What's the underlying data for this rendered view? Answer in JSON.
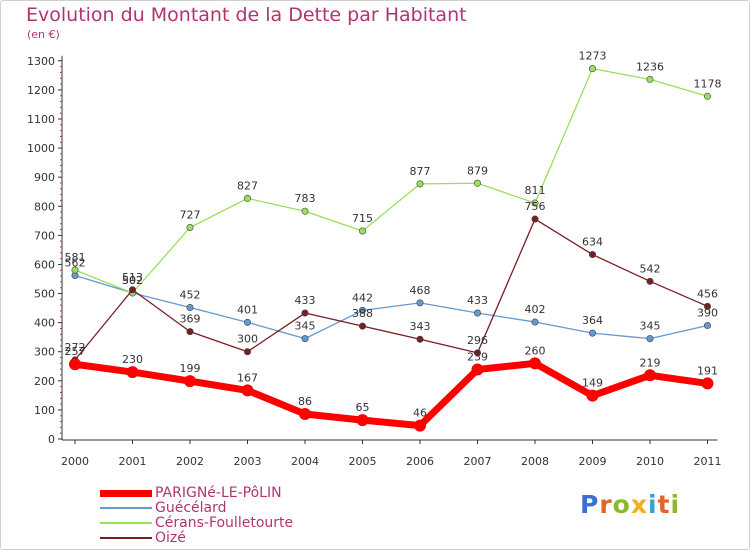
{
  "title": "Evolution du Montant de la Dette par Habitant",
  "subtitle": "(en €)",
  "logo": {
    "text": "Proxiti",
    "colors": [
      "#3a6fd1",
      "#e0662a",
      "#8ab832",
      "#f0b020",
      "#3a9fd1",
      "#e0662a",
      "#8ab832"
    ]
  },
  "chart_data": {
    "type": "line",
    "title": "Evolution du Montant de la Dette par Habitant",
    "ylabel": "(en €)",
    "x": [
      "2000",
      "2001",
      "2002",
      "2003",
      "2004",
      "2005",
      "2006",
      "2007",
      "2008",
      "2009",
      "2010",
      "2011"
    ],
    "ylim": [
      0,
      1300
    ],
    "yticks": [
      0,
      100,
      200,
      300,
      400,
      500,
      600,
      700,
      800,
      900,
      1000,
      1100,
      1200,
      1300
    ],
    "grid": false,
    "legend_position": "bottom-left",
    "series": [
      {
        "name": "PARIGNé-LE-PôLIN",
        "color": "#ff0000",
        "line_width": 7,
        "values": [
          257,
          230,
          199,
          167,
          86,
          65,
          46,
          239,
          260,
          149,
          219,
          191
        ]
      },
      {
        "name": "Guécélard",
        "color": "#6699cc",
        "line_width": 1.3,
        "values": [
          562,
          502,
          452,
          401,
          345,
          442,
          468,
          433,
          402,
          364,
          345,
          390
        ]
      },
      {
        "name": "Cérans-Foulletourte",
        "color": "#99e05a",
        "line_width": 1.3,
        "values": [
          581,
          502,
          727,
          827,
          783,
          715,
          877,
          879,
          811,
          1273,
          1236,
          1178
        ]
      },
      {
        "name": "Oizé",
        "color": "#7a1e23",
        "line_width": 1.3,
        "values": [
          272,
          513,
          369,
          300,
          433,
          388,
          343,
          296,
          756,
          634,
          542,
          456
        ]
      }
    ]
  }
}
